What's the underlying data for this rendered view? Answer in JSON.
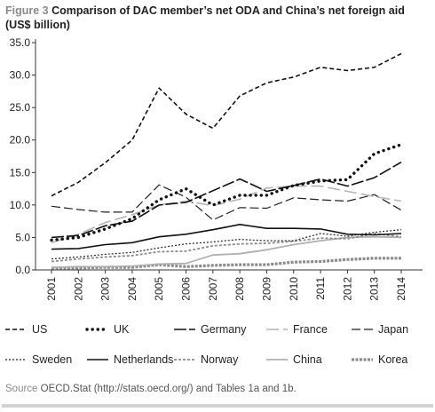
{
  "figure": {
    "label": "Figure 3",
    "title": "Comparison of DAC member’s net ODA and China’s net foreign aid (US$ billion)",
    "source_label": "Source",
    "source_text": "OECD.Stat (http://stats.oecd.org/) and Tables 1a and 1b."
  },
  "chart_data": {
    "type": "line",
    "x": [
      "2001",
      "2002",
      "2003",
      "2004",
      "2005",
      "2006",
      "2007",
      "2008",
      "2009",
      "2010",
      "2011",
      "2012",
      "2013",
      "2014"
    ],
    "ylim": [
      0,
      35
    ],
    "yticks": [
      "0.0",
      "5.0",
      "10.0",
      "15.0",
      "20.0",
      "25.0",
      "30.0",
      "35.0"
    ],
    "grid": false,
    "legend_position": "bottom",
    "series": [
      {
        "name": "US",
        "style": "dashed",
        "color": "#111111",
        "values": [
          11.4,
          13.5,
          16.5,
          20,
          28,
          24,
          21.8,
          26.8,
          28.8,
          29.7,
          31.2,
          30.7,
          31.2,
          33.3
        ]
      },
      {
        "name": "UK",
        "style": "dotted-bold",
        "color": "#111111",
        "values": [
          4.6,
          5.0,
          6.3,
          7.9,
          10.8,
          12.5,
          10.0,
          11.5,
          11.5,
          13.0,
          13.7,
          13.9,
          17.9,
          19.3
        ]
      },
      {
        "name": "Germany",
        "style": "longdash",
        "color": "#111111",
        "values": [
          5.0,
          5.3,
          6.8,
          7.5,
          10.0,
          10.4,
          12.2,
          14.0,
          12.1,
          13.0,
          14.0,
          12.9,
          14.2,
          16.6
        ]
      },
      {
        "name": "France",
        "style": "longdash-light",
        "color": "#b5b5b5",
        "values": [
          4.2,
          5.5,
          7.3,
          8.5,
          10.0,
          10.6,
          9.9,
          10.9,
          12.6,
          12.9,
          12.9,
          12.1,
          11.3,
          10.6
        ]
      },
      {
        "name": "Japan",
        "style": "dashdot",
        "color": "#222222",
        "values": [
          9.8,
          9.3,
          8.9,
          8.9,
          13.1,
          11.2,
          7.7,
          9.6,
          9.5,
          11.1,
          10.8,
          10.6,
          11.6,
          9.2
        ]
      },
      {
        "name": "Sweden",
        "style": "fine-dotted",
        "color": "#222222",
        "values": [
          1.7,
          2.0,
          2.4,
          2.7,
          3.4,
          4.0,
          4.3,
          4.7,
          4.5,
          4.5,
          5.6,
          5.2,
          5.8,
          6.2
        ]
      },
      {
        "name": "Netherlands",
        "style": "solid",
        "color": "#111111",
        "values": [
          3.2,
          3.3,
          3.9,
          4.2,
          5.1,
          5.5,
          6.2,
          7.0,
          6.4,
          6.4,
          6.3,
          5.5,
          5.4,
          5.6
        ]
      },
      {
        "name": "Norway",
        "style": "dashed-gray",
        "color": "#8c8c8c",
        "values": [
          1.3,
          1.7,
          2.0,
          2.2,
          2.8,
          2.9,
          3.7,
          4.0,
          4.1,
          4.4,
          4.9,
          4.8,
          5.6,
          5.1
        ]
      },
      {
        "name": "China",
        "style": "solid-light",
        "color": "#b0b0b0",
        "values": [
          0.4,
          0.5,
          0.5,
          0.6,
          0.9,
          1.0,
          2.3,
          2.5,
          3.1,
          3.9,
          4.5,
          5.0,
          5.1,
          5.0
        ]
      },
      {
        "name": "Korea",
        "style": "beaded",
        "color": "#8a8a8a",
        "values": [
          0.3,
          0.3,
          0.4,
          0.4,
          0.8,
          0.5,
          0.7,
          0.8,
          0.8,
          1.2,
          1.3,
          1.6,
          1.8,
          1.8
        ]
      }
    ]
  }
}
